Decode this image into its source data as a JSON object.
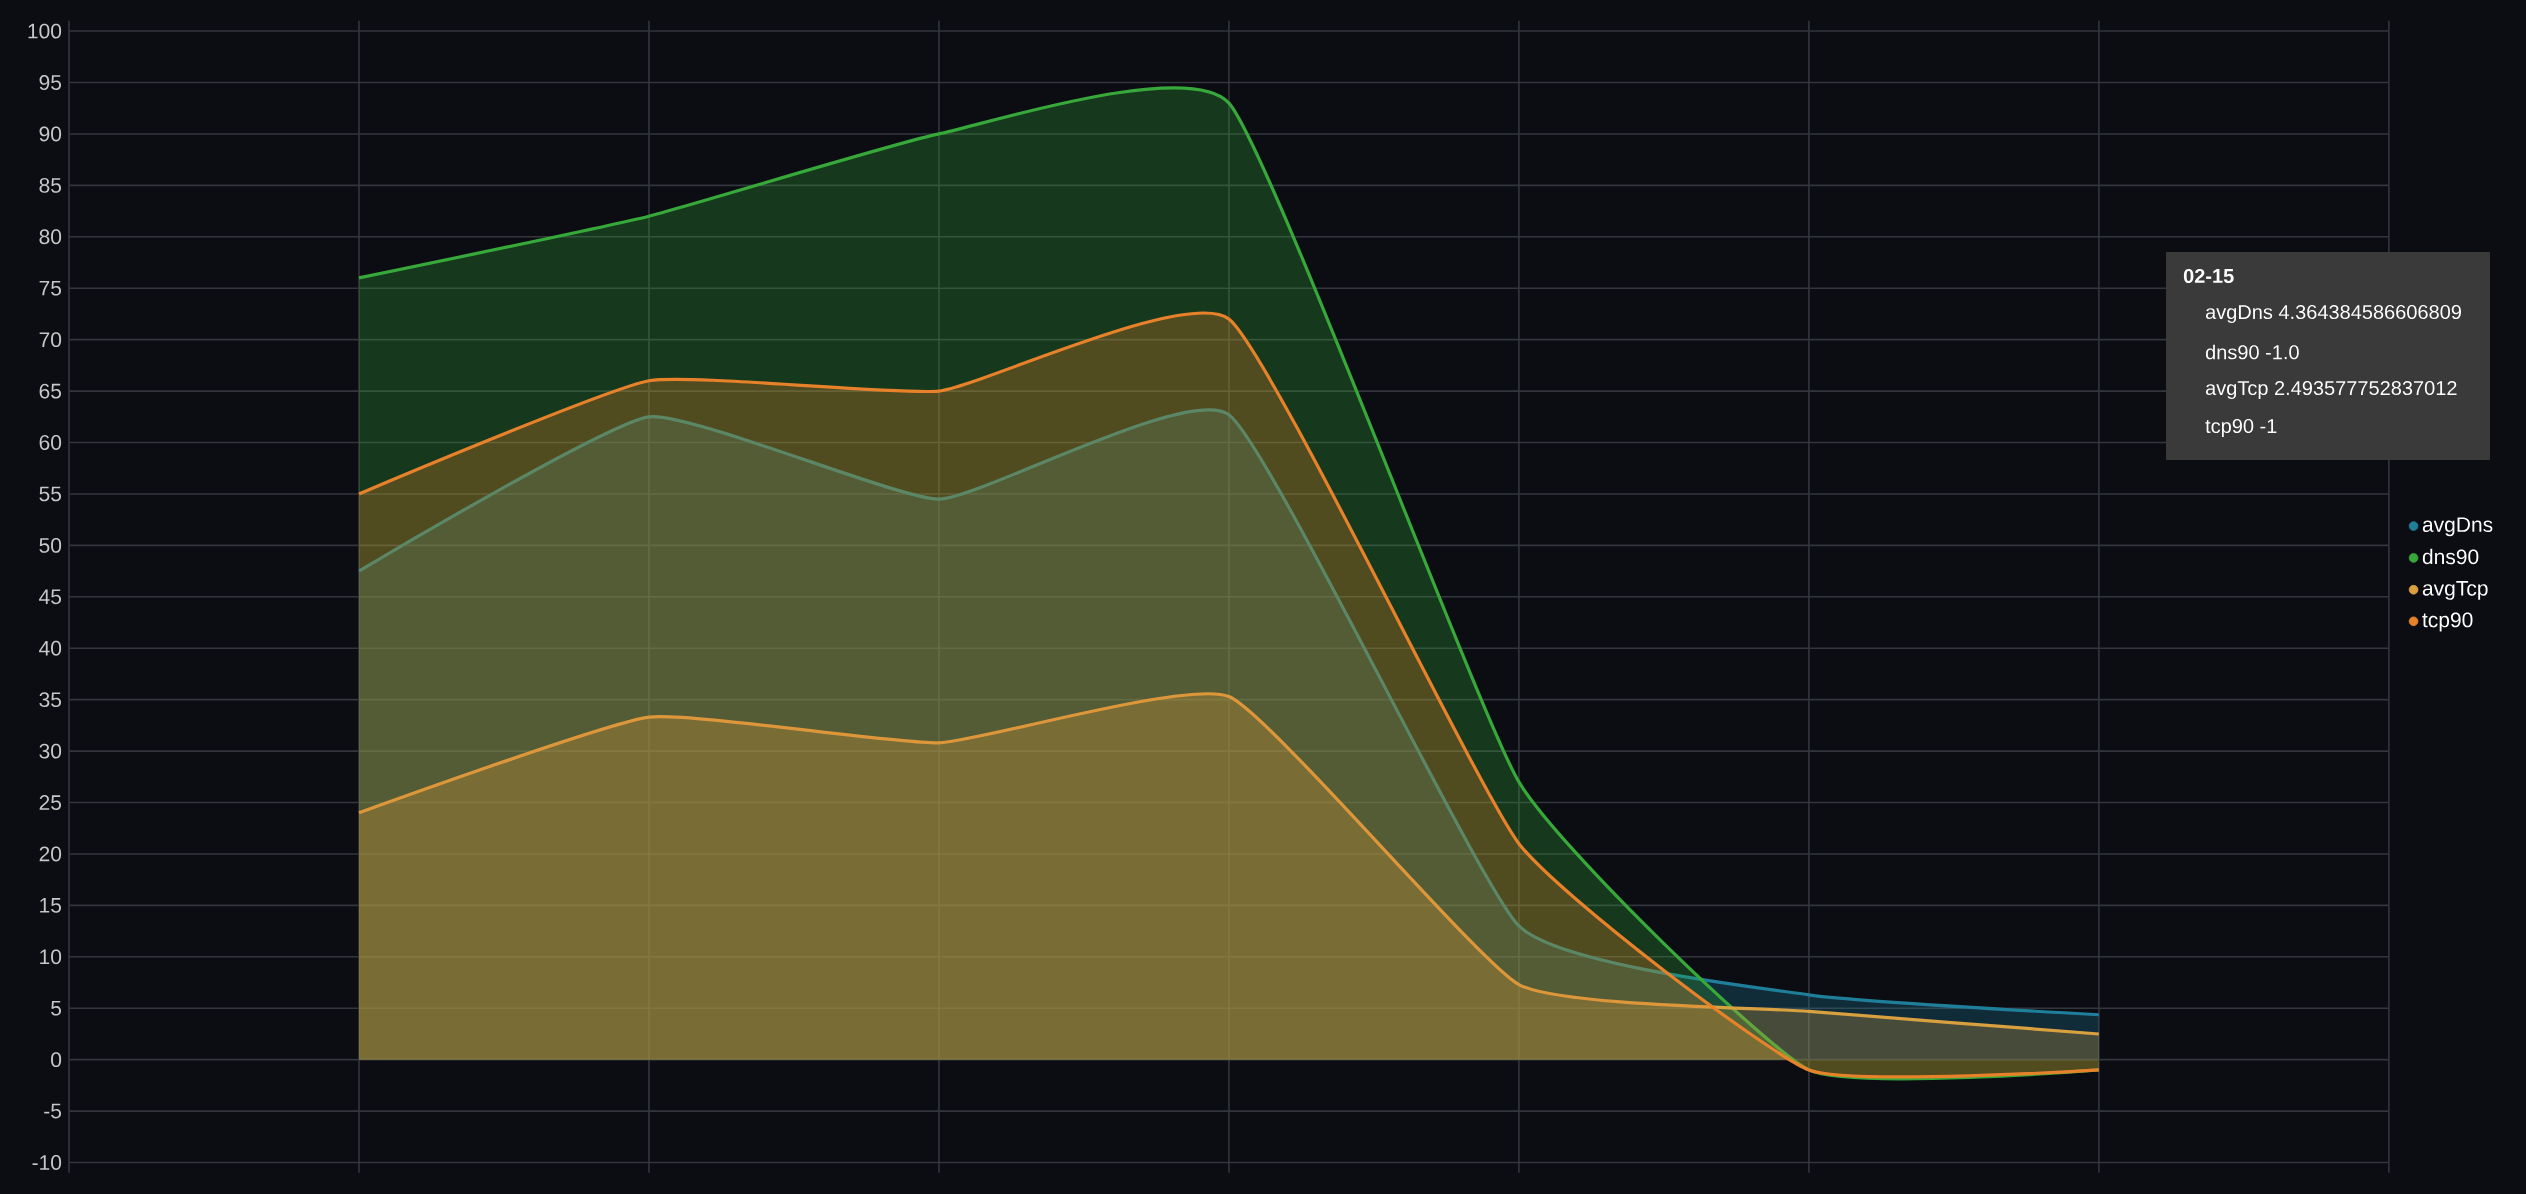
{
  "chart_data": {
    "type": "area",
    "categories": [
      null,
      null,
      null,
      null,
      null,
      null,
      null,
      null,
      null
    ],
    "series": [
      {
        "name": "avgDns",
        "color": "#1f7f9a",
        "values": [
          null,
          47.5,
          62.5,
          54.5,
          62.7,
          13,
          6.3,
          4.364384586606809,
          null
        ]
      },
      {
        "name": "dns90",
        "color": "#37a83a",
        "values": [
          null,
          76,
          82,
          90,
          93,
          27,
          -1,
          -1.0,
          null
        ]
      },
      {
        "name": "avgTcp",
        "color": "#d9a040",
        "values": [
          null,
          24,
          33.3,
          30.8,
          35.3,
          7.3,
          4.7,
          2.493577752837012,
          null
        ]
      },
      {
        "name": "tcp90",
        "color": "#e8822a",
        "values": [
          null,
          55,
          66,
          65,
          72,
          21,
          -1,
          -1,
          null
        ]
      }
    ],
    "ylim": [
      -11,
      101
    ],
    "yticks": [
      -10,
      -5,
      0,
      5,
      10,
      15,
      20,
      25,
      30,
      35,
      40,
      45,
      50,
      55,
      60,
      65,
      70,
      75,
      80,
      85,
      90,
      95,
      100
    ],
    "grid": true,
    "legend": "right",
    "tick_labels": "y",
    "annotations": [
      "02-15",
      "avgDns 4.364384586606809",
      "dns90 -1.0",
      "avgTcp 2.493577752837012",
      "tcp90 -1"
    ]
  }
}
